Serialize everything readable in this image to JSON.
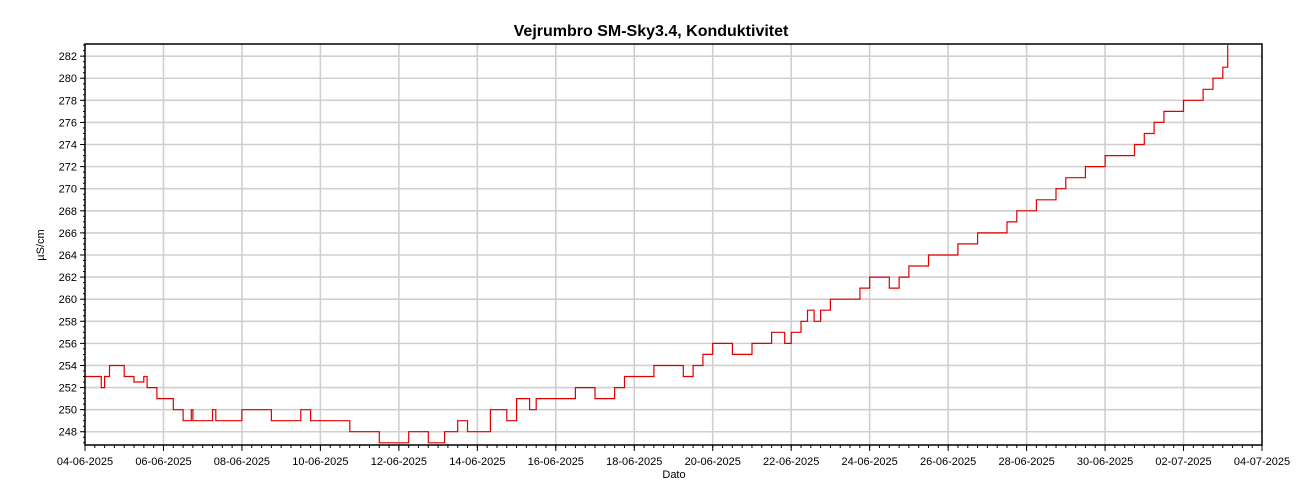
{
  "chart_data": {
    "type": "line",
    "title": "Vejrumbro SM-Sky3.4, Konduktivitet",
    "xlabel": "Dato",
    "ylabel": "µS/cm",
    "xlim": [
      "04-06-2025",
      "04-07-2025"
    ],
    "ylim": [
      246.8,
      283.1
    ],
    "x_tick_labels": [
      "04-06-2025",
      "06-06-2025",
      "08-06-2025",
      "10-06-2025",
      "12-06-2025",
      "14-06-2025",
      "16-06-2025",
      "18-06-2025",
      "20-06-2025",
      "22-06-2025",
      "24-06-2025",
      "26-06-2025",
      "28-06-2025",
      "30-06-2025",
      "02-07-2025",
      "04-07-2025"
    ],
    "y_tick_labels": [
      "248",
      "250",
      "252",
      "254",
      "256",
      "258",
      "260",
      "262",
      "264",
      "266",
      "268",
      "270",
      "272",
      "274",
      "276",
      "278",
      "280",
      "282"
    ],
    "grid": true,
    "series": [
      {
        "color": "#e00000",
        "x": [
          "04-06-2025 00:00",
          "04-06-2025 10:00",
          "04-06-2025 12:00",
          "04-06-2025 15:00",
          "05-06-2025 00:00",
          "05-06-2025 06:00",
          "05-06-2025 12:00",
          "05-06-2025 14:00",
          "05-06-2025 18:00",
          "05-06-2025 20:00",
          "06-06-2025 00:00",
          "06-06-2025 06:00",
          "06-06-2025 08:00",
          "06-06-2025 12:00",
          "06-06-2025 16:00",
          "06-06-2025 17:00",
          "06-06-2025 18:00",
          "06-06-2025 20:00",
          "07-06-2025 04:00",
          "07-06-2025 06:00",
          "07-06-2025 08:00",
          "07-06-2025 12:00",
          "07-06-2025 23:00",
          "08-06-2025 00:00",
          "08-06-2025 02:00",
          "08-06-2025 06:00",
          "08-06-2025 18:00",
          "09-06-2025 00:00",
          "09-06-2025 12:00",
          "09-06-2025 18:00",
          "10-06-2025 12:00",
          "10-06-2025 18:00",
          "11-06-2025 10:00",
          "11-06-2025 12:00",
          "11-06-2025 18:00",
          "12-06-2025 06:00",
          "12-06-2025 12:00",
          "12-06-2025 16:00",
          "12-06-2025 18:00",
          "13-06-2025 00:00",
          "13-06-2025 04:00",
          "13-06-2025 12:00",
          "13-06-2025 18:00",
          "14-06-2025 00:00",
          "14-06-2025 08:00",
          "14-06-2025 18:00",
          "15-06-2025 00:00",
          "15-06-2025 06:00",
          "15-06-2025 08:00",
          "15-06-2025 12:00",
          "15-06-2025 18:00",
          "16-06-2025 00:00",
          "16-06-2025 12:00",
          "17-06-2025 00:00",
          "17-06-2025 12:00",
          "17-06-2025 18:00",
          "18-06-2025 00:00",
          "18-06-2025 12:00",
          "19-06-2025 00:00",
          "19-06-2025 06:00",
          "19-06-2025 12:00",
          "19-06-2025 18:00",
          "20-06-2025 00:00",
          "20-06-2025 12:00",
          "21-06-2025 00:00",
          "21-06-2025 12:00",
          "21-06-2025 20:00",
          "22-06-2025 00:00",
          "22-06-2025 06:00",
          "22-06-2025 10:00",
          "22-06-2025 14:00",
          "22-06-2025 18:00",
          "23-06-2025 00:00",
          "23-06-2025 12:00",
          "23-06-2025 18:00",
          "24-06-2025 00:00",
          "24-06-2025 12:00",
          "24-06-2025 18:00",
          "25-06-2025 00:00",
          "25-06-2025 12:00",
          "26-06-2025 00:00",
          "26-06-2025 06:00",
          "26-06-2025 18:00",
          "27-06-2025 00:00",
          "27-06-2025 12:00",
          "27-06-2025 18:00",
          "28-06-2025 00:00",
          "28-06-2025 06:00",
          "28-06-2025 18:00",
          "29-06-2025 00:00",
          "29-06-2025 12:00",
          "30-06-2025 00:00",
          "30-06-2025 12:00",
          "30-06-2025 18:00",
          "01-07-2025 00:00",
          "01-07-2025 06:00",
          "01-07-2025 12:00",
          "02-07-2025 00:00",
          "02-07-2025 12:00",
          "02-07-2025 18:00",
          "03-07-2025 00:00",
          "03-07-2025 03:00"
        ],
        "y": [
          253,
          252,
          253,
          254,
          253,
          252.5,
          253,
          252,
          252,
          251,
          251,
          250,
          250,
          249,
          249,
          250,
          249,
          249,
          249,
          250,
          249,
          249,
          249,
          250,
          250,
          250,
          249,
          249,
          250,
          249,
          249,
          248,
          248,
          247,
          247,
          248,
          248,
          248,
          247,
          247,
          248,
          249,
          248,
          248,
          250,
          249,
          251,
          251,
          250,
          251,
          251,
          251,
          252,
          251,
          252,
          253,
          253,
          254,
          254,
          253,
          254,
          255,
          256,
          255,
          256,
          257,
          256,
          257,
          258,
          259,
          258,
          259,
          260,
          260,
          261,
          262,
          261,
          262,
          263,
          264,
          264,
          265,
          266,
          266,
          267,
          268,
          268,
          269,
          270,
          271,
          272,
          273,
          273,
          274,
          275,
          276,
          277,
          278,
          279,
          280,
          281,
          283
        ]
      }
    ]
  }
}
